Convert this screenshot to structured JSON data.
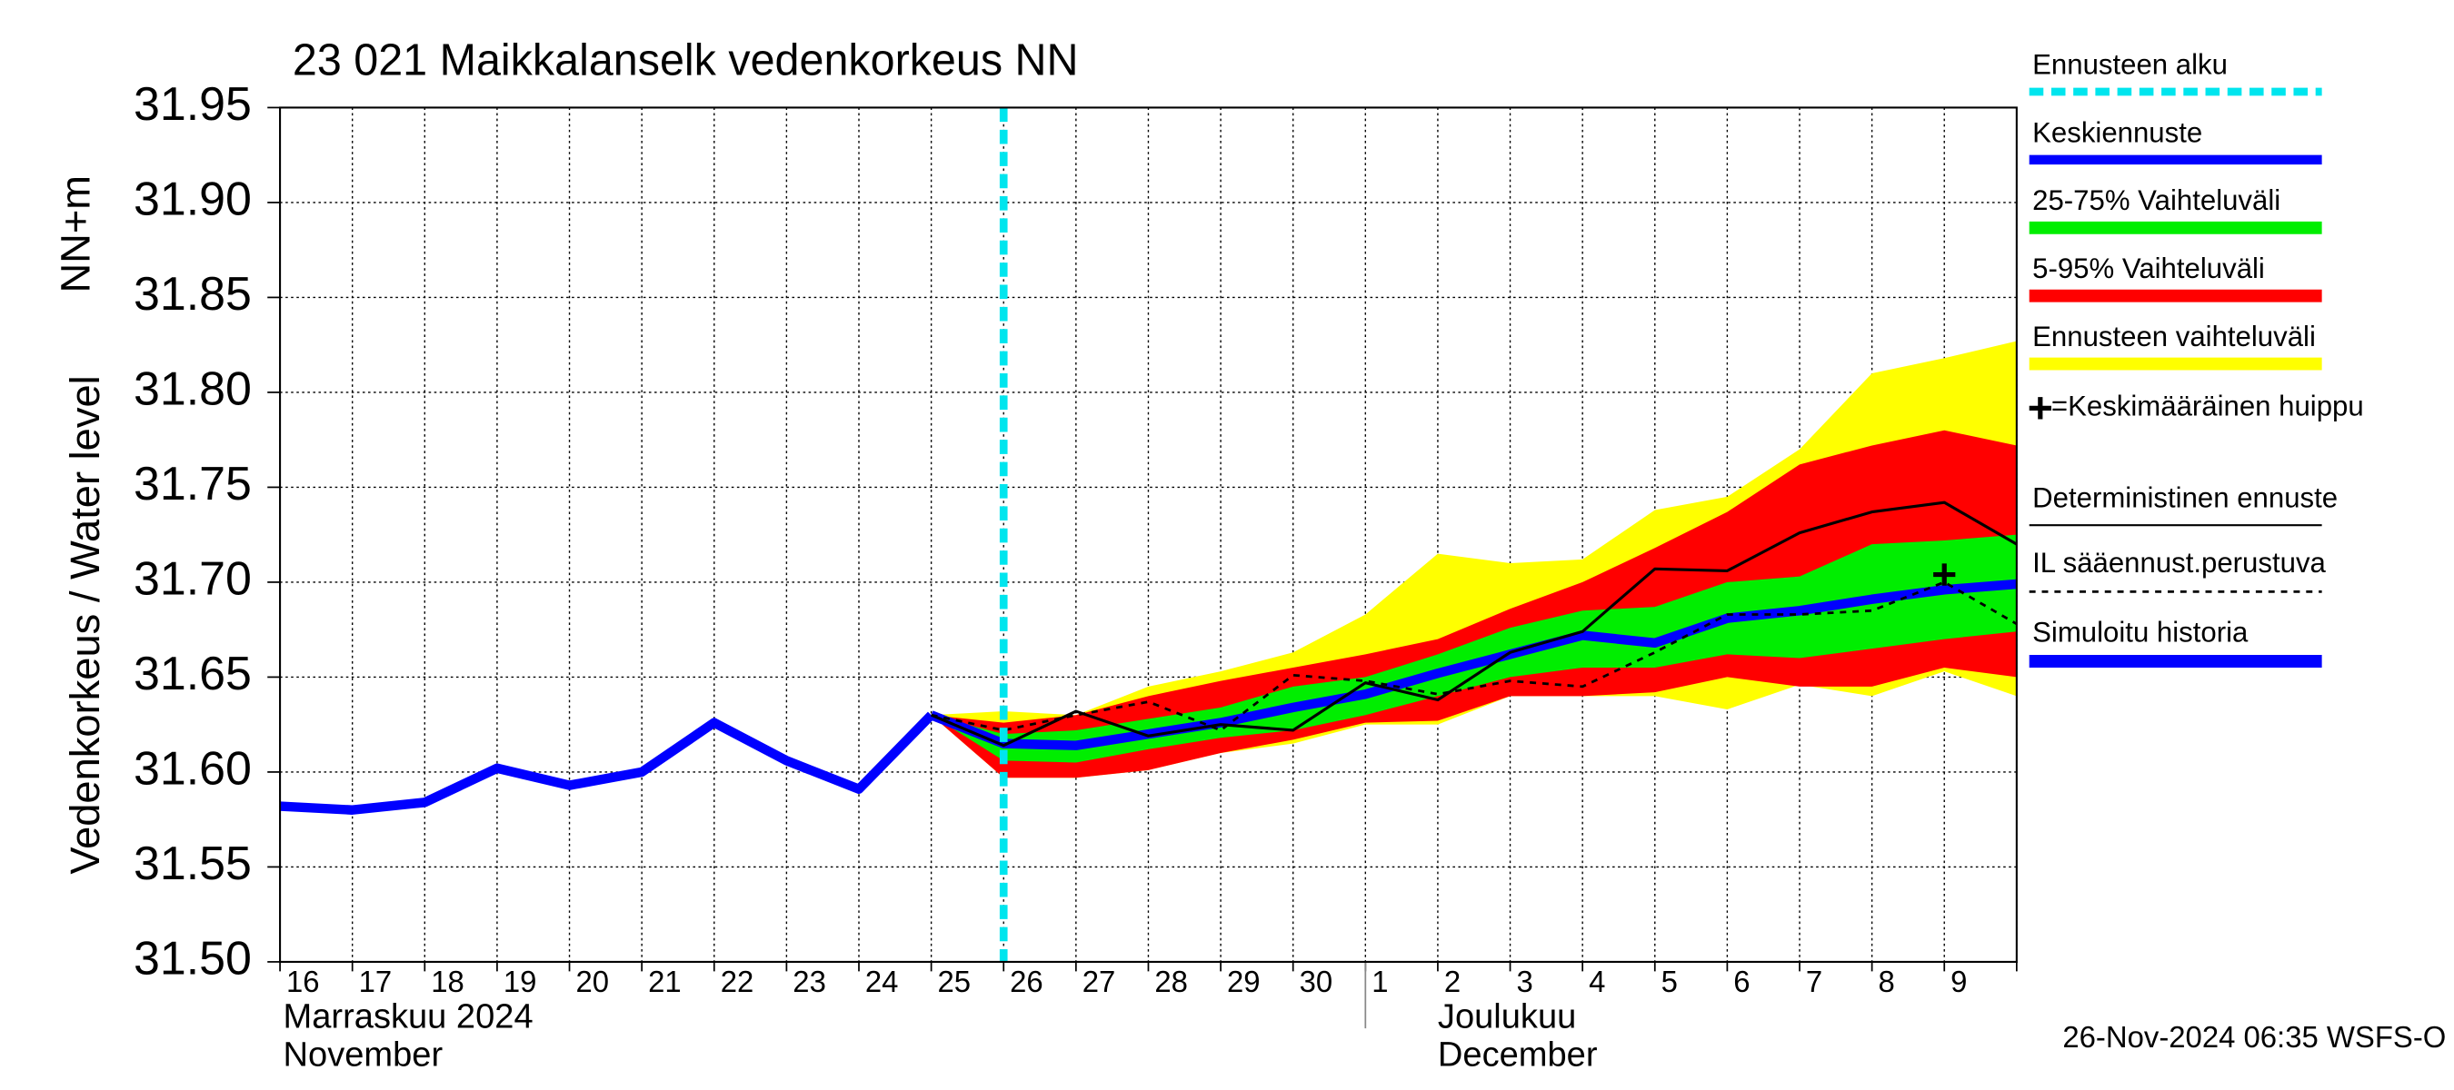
{
  "chart_data": {
    "type": "line",
    "title": "23 021 Maikkalanselk vedenkorkeus NN",
    "ylabel": "Vedenkorkeus / Water level",
    "yunit": "NN+m",
    "timestamp": "26-Nov-2024 06:35 WSFS-O",
    "ylim": [
      31.5,
      31.95
    ],
    "yticks": [
      {
        "value": 31.5,
        "label": "31.50"
      },
      {
        "value": 31.55,
        "label": "31.55"
      },
      {
        "value": 31.6,
        "label": "31.60"
      },
      {
        "value": 31.65,
        "label": "31.65"
      },
      {
        "value": 31.7,
        "label": "31.70"
      },
      {
        "value": 31.75,
        "label": "31.75"
      },
      {
        "value": 31.8,
        "label": "31.80"
      },
      {
        "value": 31.85,
        "label": "31.85"
      },
      {
        "value": 31.9,
        "label": "31.90"
      },
      {
        "value": 31.95,
        "label": "31.95"
      }
    ],
    "grid": true,
    "categories": [
      "16",
      "17",
      "18",
      "19",
      "20",
      "21",
      "22",
      "23",
      "24",
      "25",
      "26",
      "27",
      "28",
      "29",
      "30",
      "1",
      "2",
      "3",
      "4",
      "5",
      "6",
      "7",
      "8",
      "9",
      null
    ],
    "x_groups": [
      {
        "start": "16",
        "labels": [
          "Marraskuu 2024",
          "November"
        ]
      },
      {
        "start": "1",
        "labels": [
          "Joulukuu",
          "December"
        ]
      }
    ],
    "forecast_start": {
      "name": "Ennusteen alku",
      "x": "26",
      "color": "#00e5ee"
    },
    "bands": [
      {
        "name": "25-75% Vaihteluväli",
        "color": "#00ee00",
        "low": [
          null,
          null,
          null,
          null,
          null,
          null,
          null,
          null,
          null,
          31.63,
          31.606,
          31.605,
          31.612,
          31.618,
          31.622,
          31.63,
          31.64,
          31.65,
          31.655,
          31.655,
          31.662,
          31.66,
          31.665,
          31.67,
          31.674
        ],
        "high": [
          null,
          null,
          null,
          null,
          null,
          null,
          null,
          null,
          null,
          31.63,
          31.62,
          31.622,
          31.628,
          31.634,
          31.645,
          31.65,
          31.662,
          31.676,
          31.685,
          31.687,
          31.7,
          31.703,
          31.72,
          31.722,
          31.725
        ]
      },
      {
        "name": "5-95% Vaihteluväli",
        "color": "#ff0000",
        "low": [
          null,
          null,
          null,
          null,
          null,
          null,
          null,
          null,
          null,
          31.63,
          31.597,
          31.597,
          31.601,
          31.61,
          31.617,
          31.626,
          31.627,
          31.64,
          31.64,
          31.642,
          31.65,
          31.645,
          31.645,
          31.655,
          31.65
        ],
        "high": [
          null,
          null,
          null,
          null,
          null,
          null,
          null,
          null,
          null,
          31.63,
          31.626,
          31.63,
          31.64,
          31.648,
          31.655,
          31.662,
          31.67,
          31.686,
          31.7,
          31.718,
          31.737,
          31.762,
          31.772,
          31.78,
          31.772
        ]
      },
      {
        "name": "Ennusteen vaihteluväli",
        "color": "#ffff00",
        "low": [
          null,
          null,
          null,
          null,
          null,
          null,
          null,
          null,
          null,
          31.63,
          31.597,
          31.597,
          31.601,
          31.61,
          31.615,
          31.625,
          31.625,
          31.64,
          31.64,
          31.64,
          31.633,
          31.646,
          31.64,
          31.653,
          31.64
        ],
        "high": [
          null,
          null,
          null,
          null,
          null,
          null,
          null,
          null,
          null,
          31.63,
          31.632,
          31.63,
          31.645,
          31.653,
          31.663,
          31.683,
          31.715,
          31.71,
          31.712,
          31.738,
          31.745,
          31.77,
          31.81,
          31.818,
          31.827
        ]
      }
    ],
    "series": [
      {
        "name": "Keskiennuste",
        "color": "#0000ff",
        "width": 6,
        "dash": null,
        "values": [
          null,
          null,
          null,
          null,
          null,
          null,
          null,
          null,
          null,
          31.63,
          31.615,
          31.614,
          31.62,
          31.626,
          31.634,
          31.641,
          31.652,
          31.662,
          31.672,
          31.668,
          31.681,
          31.685,
          31.691,
          31.696,
          31.699
        ]
      },
      {
        "name": "Deterministinen ennuste",
        "color": "#000000",
        "width": 1.8,
        "dash": null,
        "values": [
          null,
          null,
          null,
          null,
          null,
          null,
          null,
          null,
          null,
          31.63,
          31.614,
          31.632,
          31.619,
          31.625,
          31.622,
          31.647,
          31.638,
          31.663,
          31.674,
          31.707,
          31.706,
          31.726,
          31.737,
          31.742,
          31.72
        ]
      },
      {
        "name": "IL sääennust.perustuva",
        "color": "#000000",
        "width": 1.6,
        "dash": "4 4",
        "values": [
          null,
          null,
          null,
          null,
          null,
          null,
          null,
          null,
          null,
          31.63,
          31.622,
          31.63,
          31.637,
          31.622,
          31.651,
          31.648,
          31.641,
          31.648,
          31.645,
          31.663,
          31.683,
          31.683,
          31.685,
          31.7,
          31.678
        ]
      },
      {
        "name": "Simuloitu historia",
        "color": "#0000ff",
        "width": 6,
        "dash": null,
        "values": [
          31.582,
          31.58,
          31.584,
          31.602,
          31.593,
          31.6,
          31.626,
          31.606,
          31.591,
          31.63,
          null,
          null,
          null,
          null,
          null,
          null,
          null,
          null,
          null,
          null,
          null,
          null,
          null,
          null,
          null
        ]
      }
    ],
    "peak": {
      "name": "=Keskimääräinen huippu",
      "x": "9",
      "value": 31.704
    }
  }
}
